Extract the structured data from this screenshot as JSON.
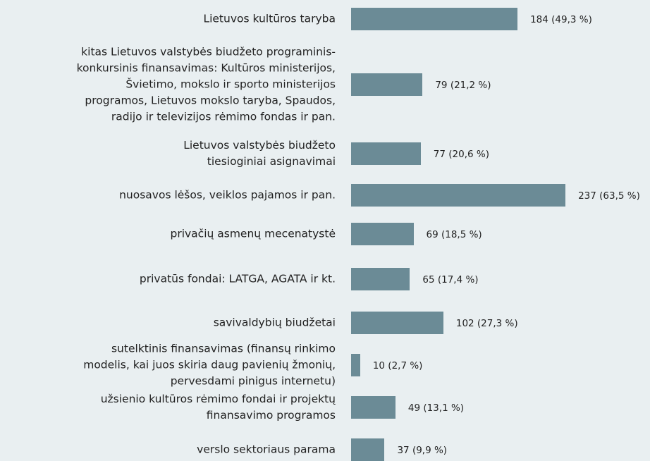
{
  "chart_data": {
    "type": "bar",
    "orientation": "horizontal",
    "color": "#6b8b96",
    "categories": [
      "Lietuvos kultūros taryba",
      "kitas Lietuvos valstybės biudžeto programinis-\nkonkursinis finansavimas: Kultūros ministerijos,\nŠvietimo, mokslo ir sporto ministerijos\nprogramos, Lietuvos mokslo taryba, Spaudos,\nradijo ir televizijos rėmimo fondas ir pan.",
      "Lietuvos valstybės biudžeto\ntiesioginiai asignavimai",
      "nuosavos lėšos, veiklos pajamos ir pan.",
      "privačių asmenų mecenatystė",
      "privatūs fondai: LATGA, AGATA ir kt.",
      "savivaldybių biudžetai",
      "sutelktinis finansavimas (finansų rinkimo\nmodelis, kai juos skiria daug pavienių žmonių,\npervesdami pinigus internetu)",
      "užsienio kultūros rėmimo fondai ir projektų\nfinansavimo programos",
      "verslo sektoriaus parama"
    ],
    "values": [
      184,
      79,
      77,
      237,
      69,
      65,
      102,
      10,
      49,
      37
    ],
    "value_labels": [
      "184 (49,3 %)",
      "79 (21,2 %)",
      "77 (20,6 %)",
      "237 (63,5 %)",
      "69 (18,5 %)",
      "65 (17,4 %)",
      "102 (27,3 %)",
      "10 (2,7 %)",
      "49 (13,1 %)",
      "37 (9,9 %)"
    ]
  }
}
